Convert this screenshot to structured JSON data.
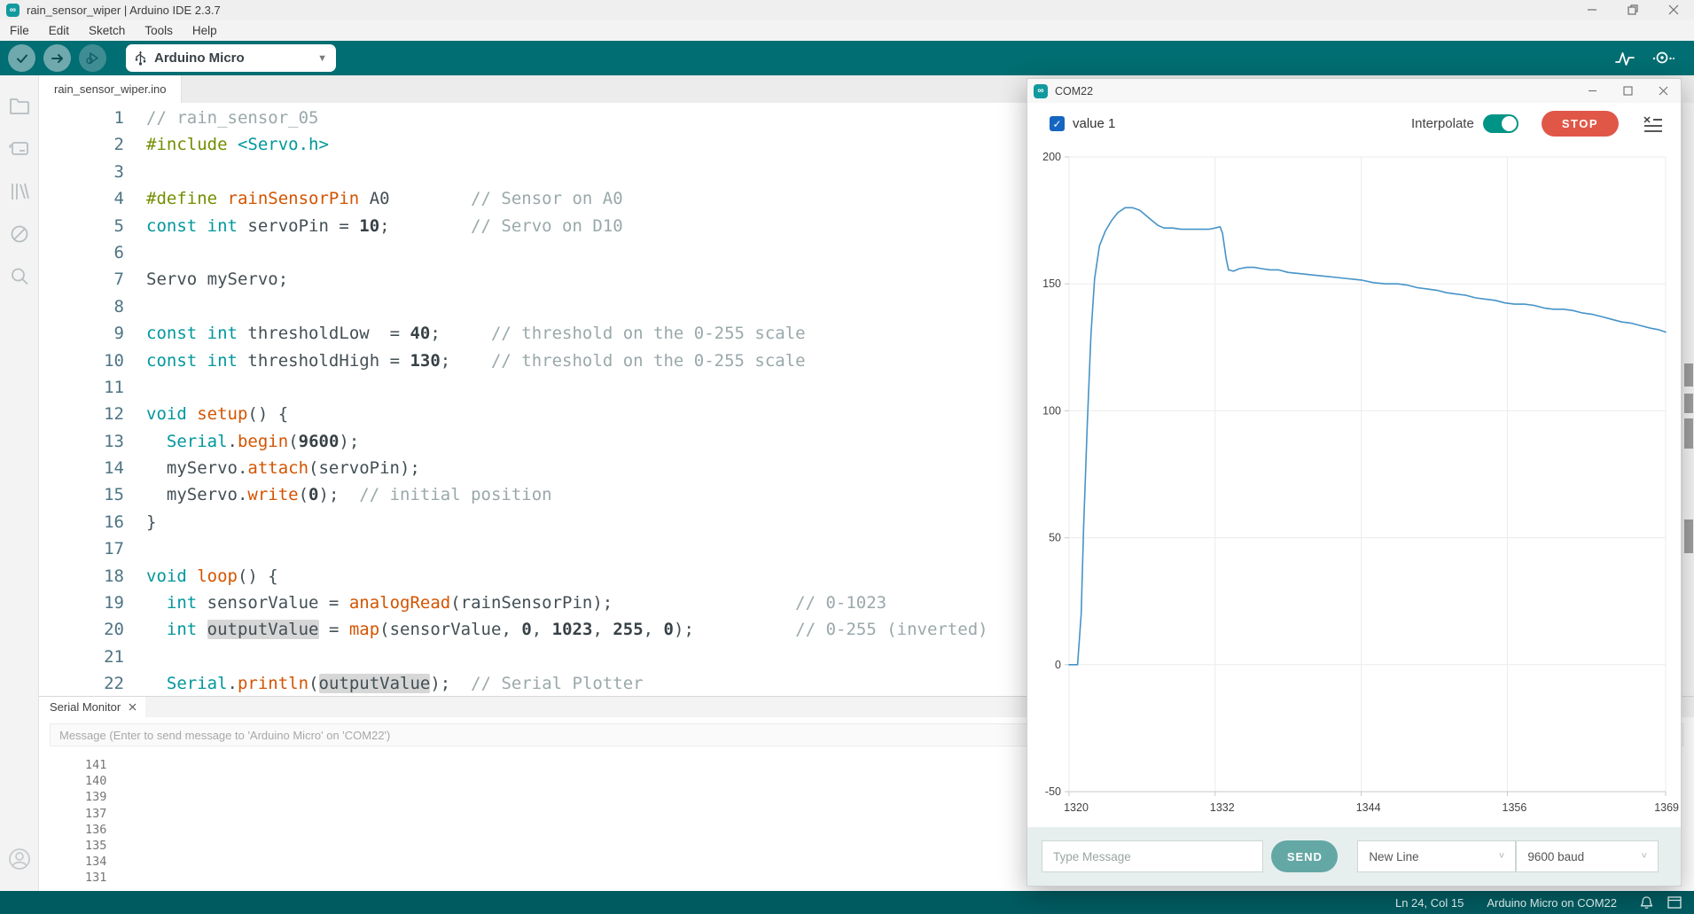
{
  "window": {
    "title": "rain_sensor_wiper | Arduino IDE 2.3.7",
    "logo_glyph": "∞"
  },
  "menu": {
    "items": [
      "File",
      "Edit",
      "Sketch",
      "Tools",
      "Help"
    ]
  },
  "toolbar": {
    "board": "Arduino Micro"
  },
  "editor": {
    "tab": "rain_sensor_wiper.ino",
    "lines": [
      {
        "n": "1",
        "segs": [
          [
            "c",
            "// rain_sensor_05"
          ]
        ]
      },
      {
        "n": "2",
        "segs": [
          [
            "p",
            "#include"
          ],
          [
            "d",
            " "
          ],
          [
            "k",
            "<Servo.h>"
          ]
        ]
      },
      {
        "n": "3",
        "segs": []
      },
      {
        "n": "4",
        "segs": [
          [
            "p",
            "#define"
          ],
          [
            "d",
            " "
          ],
          [
            "f",
            "rainSensorPin"
          ],
          [
            "d",
            " A0        "
          ],
          [
            "c",
            "// Sensor on A0"
          ]
        ]
      },
      {
        "n": "5",
        "segs": [
          [
            "k",
            "const"
          ],
          [
            "d",
            " "
          ],
          [
            "k",
            "int"
          ],
          [
            "d",
            " servoPin = "
          ],
          [
            "n",
            "10"
          ],
          [
            "d",
            ";        "
          ],
          [
            "c",
            "// Servo on D10"
          ]
        ]
      },
      {
        "n": "6",
        "segs": []
      },
      {
        "n": "7",
        "segs": [
          [
            "d",
            "Servo myServo;"
          ]
        ]
      },
      {
        "n": "8",
        "segs": []
      },
      {
        "n": "9",
        "segs": [
          [
            "k",
            "const"
          ],
          [
            "d",
            " "
          ],
          [
            "k",
            "int"
          ],
          [
            "d",
            " thresholdLow  = "
          ],
          [
            "n",
            "40"
          ],
          [
            "d",
            ";     "
          ],
          [
            "c",
            "// threshold on the 0-255 scale"
          ]
        ]
      },
      {
        "n": "10",
        "segs": [
          [
            "k",
            "const"
          ],
          [
            "d",
            " "
          ],
          [
            "k",
            "int"
          ],
          [
            "d",
            " thresholdHigh = "
          ],
          [
            "n",
            "130"
          ],
          [
            "d",
            ";    "
          ],
          [
            "c",
            "// threshold on the 0-255 scale"
          ]
        ]
      },
      {
        "n": "11",
        "segs": []
      },
      {
        "n": "12",
        "segs": [
          [
            "k",
            "void"
          ],
          [
            "d",
            " "
          ],
          [
            "f",
            "setup"
          ],
          [
            "d",
            "() {"
          ]
        ]
      },
      {
        "n": "13",
        "segs": [
          [
            "d",
            "  "
          ],
          [
            "k",
            "Serial"
          ],
          [
            "d",
            "."
          ],
          [
            "f",
            "begin"
          ],
          [
            "d",
            "("
          ],
          [
            "n",
            "9600"
          ],
          [
            "d",
            ");"
          ]
        ]
      },
      {
        "n": "14",
        "segs": [
          [
            "d",
            "  myServo."
          ],
          [
            "f",
            "attach"
          ],
          [
            "d",
            "(servoPin);"
          ]
        ]
      },
      {
        "n": "15",
        "segs": [
          [
            "d",
            "  myServo."
          ],
          [
            "f",
            "write"
          ],
          [
            "d",
            "("
          ],
          [
            "n",
            "0"
          ],
          [
            "d",
            ");  "
          ],
          [
            "c",
            "// initial position"
          ]
        ]
      },
      {
        "n": "16",
        "segs": [
          [
            "d",
            "}"
          ]
        ]
      },
      {
        "n": "17",
        "segs": []
      },
      {
        "n": "18",
        "segs": [
          [
            "k",
            "void"
          ],
          [
            "d",
            " "
          ],
          [
            "f",
            "loop"
          ],
          [
            "d",
            "() {"
          ]
        ]
      },
      {
        "n": "19",
        "segs": [
          [
            "d",
            "  "
          ],
          [
            "k",
            "int"
          ],
          [
            "d",
            " sensorValue = "
          ],
          [
            "f",
            "analogRead"
          ],
          [
            "d",
            "(rainSensorPin);                  "
          ],
          [
            "c",
            "// 0-1023"
          ]
        ]
      },
      {
        "n": "20",
        "segs": [
          [
            "d",
            "  "
          ],
          [
            "k",
            "int"
          ],
          [
            "d",
            " "
          ],
          [
            "hl",
            "outputValue"
          ],
          [
            "d",
            " = "
          ],
          [
            "f",
            "map"
          ],
          [
            "d",
            "(sensorValue, "
          ],
          [
            "n",
            "0"
          ],
          [
            "d",
            ", "
          ],
          [
            "n",
            "1023"
          ],
          [
            "d",
            ", "
          ],
          [
            "n",
            "255"
          ],
          [
            "d",
            ", "
          ],
          [
            "n",
            "0"
          ],
          [
            "d",
            ");          "
          ],
          [
            "c",
            "// 0-255 (inverted)"
          ]
        ]
      },
      {
        "n": "21",
        "segs": []
      },
      {
        "n": "22",
        "segs": [
          [
            "d",
            "  "
          ],
          [
            "k",
            "Serial"
          ],
          [
            "d",
            "."
          ],
          [
            "f",
            "println"
          ],
          [
            "d",
            "("
          ],
          [
            "hl",
            "outputValue"
          ],
          [
            "d",
            ");  "
          ],
          [
            "c",
            "// Serial Plotter"
          ]
        ]
      }
    ]
  },
  "serial_monitor": {
    "tab": "Serial Monitor",
    "placeholder": "Message (Enter to send message to 'Arduino Micro' on 'COM22')",
    "values": [
      "141",
      "140",
      "139",
      "137",
      "136",
      "135",
      "134",
      "131"
    ]
  },
  "status_bar": {
    "position": "Ln 24, Col 15",
    "connection": "Arduino Micro on COM22"
  },
  "plotter": {
    "title": "COM22",
    "legend": "value 1",
    "interpolate_label": "Interpolate",
    "interpolate_on": true,
    "stop_label": "STOP",
    "message_placeholder": "Type Message",
    "send_label": "SEND",
    "line_ending": "New Line",
    "baud": "9600 baud",
    "chart_data": {
      "type": "line",
      "title": "",
      "legend_entries": [
        "value 1"
      ],
      "legend_position": "top-left",
      "grid": true,
      "xlim": [
        1320,
        1369
      ],
      "ylim": [
        -50,
        200
      ],
      "x_ticks": [
        1320,
        1332,
        1344,
        1356,
        1369
      ],
      "y_ticks": [
        200,
        150,
        100,
        50,
        0,
        -50
      ],
      "series": [
        {
          "name": "value 1",
          "color": "#4693c8",
          "points": [
            [
              1320,
              0
            ],
            [
              1320.7,
              0
            ],
            [
              1321,
              20
            ],
            [
              1321.2,
              55
            ],
            [
              1321.5,
              95
            ],
            [
              1321.8,
              130
            ],
            [
              1322.1,
              152
            ],
            [
              1322.5,
              165
            ],
            [
              1323,
              171
            ],
            [
              1323.5,
              175
            ],
            [
              1324,
              178
            ],
            [
              1324.6,
              180
            ],
            [
              1325.2,
              180
            ],
            [
              1325.8,
              179
            ],
            [
              1326.3,
              177
            ],
            [
              1326.8,
              175
            ],
            [
              1327.3,
              173
            ],
            [
              1327.8,
              172
            ],
            [
              1328.5,
              172
            ],
            [
              1329.2,
              171.5
            ],
            [
              1330,
              171.5
            ],
            [
              1330.8,
              171.5
            ],
            [
              1331.5,
              171.5
            ],
            [
              1332,
              172
            ],
            [
              1332.4,
              172.5
            ],
            [
              1332.6,
              170
            ],
            [
              1332.9,
              160
            ],
            [
              1333.1,
              155.5
            ],
            [
              1333.5,
              155
            ],
            [
              1334,
              156
            ],
            [
              1334.6,
              156.5
            ],
            [
              1335.2,
              156.5
            ],
            [
              1335.8,
              156
            ],
            [
              1336.5,
              155.5
            ],
            [
              1337.2,
              155.5
            ],
            [
              1338,
              154.5
            ],
            [
              1339,
              154
            ],
            [
              1340,
              153.5
            ],
            [
              1341,
              153
            ],
            [
              1342,
              152.5
            ],
            [
              1343,
              152
            ],
            [
              1344,
              151.5
            ],
            [
              1345,
              150.5
            ],
            [
              1346,
              150
            ],
            [
              1347,
              150
            ],
            [
              1347.8,
              149.5
            ],
            [
              1348.6,
              148.5
            ],
            [
              1349.4,
              148
            ],
            [
              1350.2,
              147.5
            ],
            [
              1351,
              146.5
            ],
            [
              1351.8,
              146
            ],
            [
              1352.6,
              145.5
            ],
            [
              1353.4,
              144.5
            ],
            [
              1354.2,
              144
            ],
            [
              1355,
              143.5
            ],
            [
              1355.8,
              142.5
            ],
            [
              1356.6,
              142
            ],
            [
              1357.4,
              142
            ],
            [
              1358.2,
              141.5
            ],
            [
              1359,
              140.5
            ],
            [
              1359.8,
              140
            ],
            [
              1360.6,
              140
            ],
            [
              1361.4,
              139.5
            ],
            [
              1362.2,
              138.5
            ],
            [
              1363,
              138
            ],
            [
              1363.8,
              137
            ],
            [
              1364.6,
              136
            ],
            [
              1365.4,
              135
            ],
            [
              1366.2,
              134.5
            ],
            [
              1367,
              133.5
            ],
            [
              1367.8,
              132.5
            ],
            [
              1368.4,
              132
            ],
            [
              1369,
              131
            ]
          ]
        }
      ]
    }
  },
  "colors": {
    "toolbar_teal": "#006e72",
    "statusbar_teal": "#005b60",
    "chart_line": "#4693c8",
    "stop_button": "#e05748",
    "toggle_on": "#009486",
    "checkbox_blue": "#1566c0",
    "keyword": "#00979c",
    "function": "#d35400",
    "preprocessor": "#728e00",
    "comment": "#9aa8aa"
  }
}
